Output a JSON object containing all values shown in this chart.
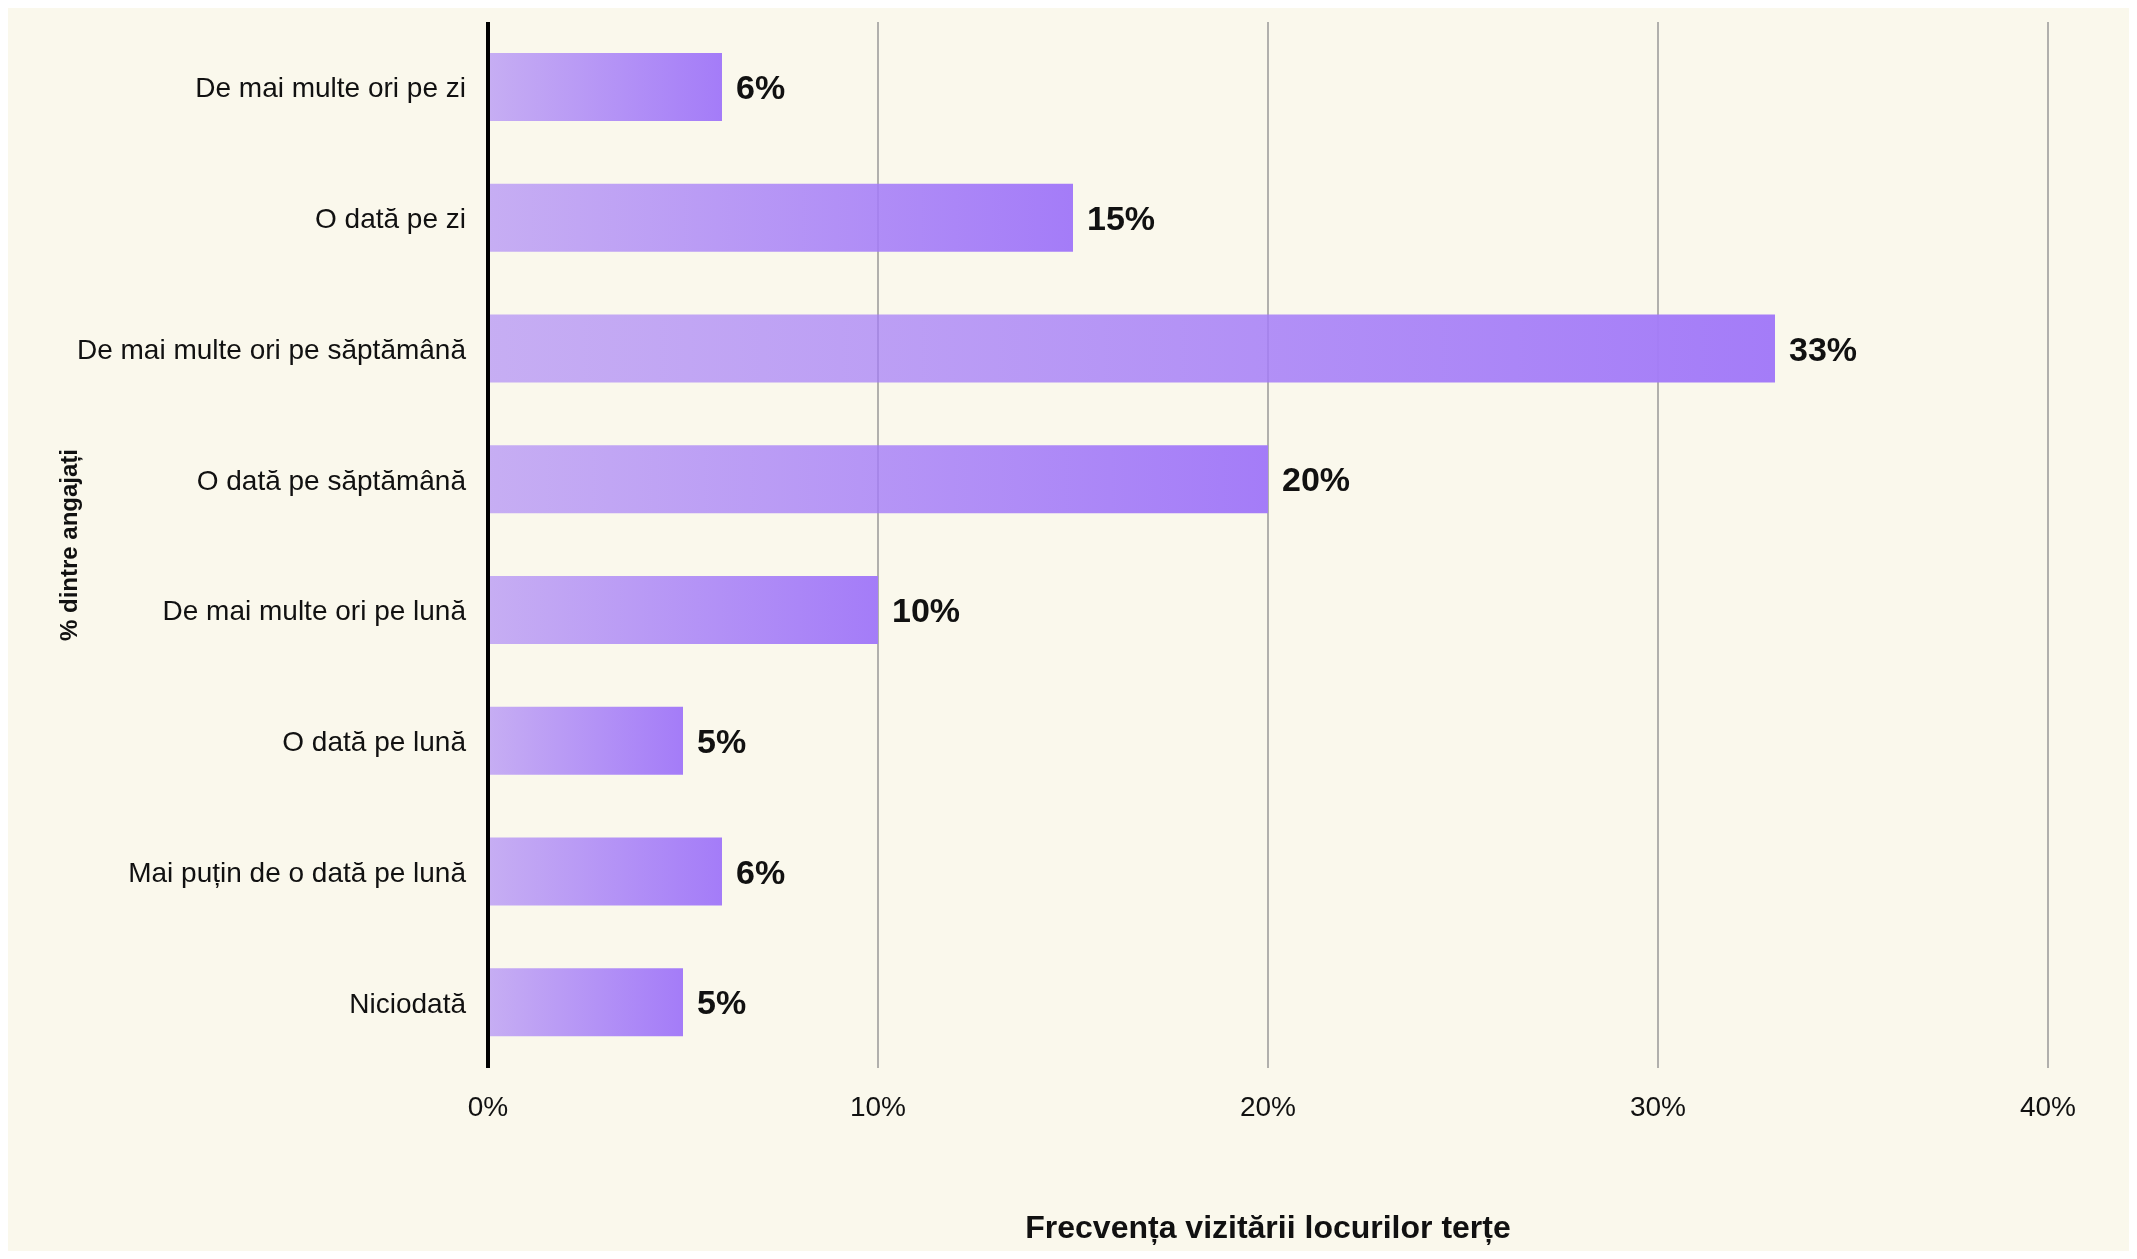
{
  "chart_data": {
    "type": "bar",
    "orientation": "horizontal",
    "xlabel": "Frecvența vizitării locurilor terțe",
    "ylabel": "% dintre angajați",
    "categories": [
      "De mai multe ori pe zi",
      "O dată pe zi",
      "De mai multe ori pe săptămână",
      "O dată pe săptămână",
      "De mai multe ori pe lună",
      "O dată pe lună",
      "Mai puțin de o dată pe lună",
      "Niciodată"
    ],
    "values": [
      6,
      15,
      33,
      20,
      10,
      5,
      6,
      5
    ],
    "value_labels": [
      "6%",
      "15%",
      "33%",
      "20%",
      "10%",
      "5%",
      "6%",
      "5%"
    ],
    "color": "#a47cf8",
    "xlim": [
      0,
      40
    ],
    "xticks": [
      {
        "value": 0,
        "label": "0%"
      },
      {
        "value": 10,
        "label": "10%"
      },
      {
        "value": 20,
        "label": "20%"
      },
      {
        "value": 30,
        "label": "30%"
      },
      {
        "value": 40,
        "label": "40%"
      }
    ],
    "grid": "x",
    "legend": false
  }
}
